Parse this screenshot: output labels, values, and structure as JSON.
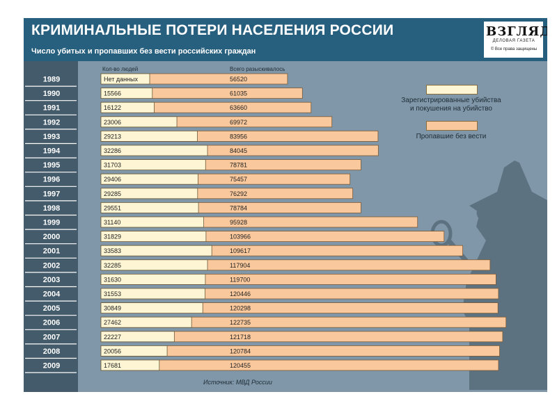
{
  "header": {
    "title": "КРИМИНАЛЬНЫЕ ПОТЕРИ НАСЕЛЕНИЯ РОССИИ",
    "subtitle": "Число убитых и пропавших без вести российских граждан"
  },
  "logo": {
    "word": "ВЗГЛЯД",
    "sub": "ДЕЛОВАЯ ГАЗЕТА",
    "rights": "© Все права защищены"
  },
  "colors": {
    "murders": "#fdf5d3",
    "missing": "#f9c89c",
    "frame": "#7f97a8",
    "header": "#275f7f",
    "sidebar": "#445b6b"
  },
  "chart_data": {
    "type": "bar",
    "orientation": "horizontal",
    "title": "КРИМИНАЛЬНЫЕ ПОТЕРИ НАСЕЛЕНИЯ РОССИИ",
    "subtitle": "Число убитых и пропавших без вести российских граждан",
    "column_headers": [
      "Кол-во людей",
      "Всего разыскивалось"
    ],
    "categories": [
      "1989",
      "1990",
      "1991",
      "1992",
      "1993",
      "1994",
      "1995",
      "1996",
      "1997",
      "1998",
      "1999",
      "2000",
      "2001",
      "2002",
      "2003",
      "2004",
      "2005",
      "2006",
      "2007",
      "2008",
      "2009"
    ],
    "series": [
      {
        "name": "Зарегистрированные убийства и покушения на убийство",
        "labels": [
          "Нет данных",
          "15566",
          "16122",
          "23006",
          "29213",
          "32286",
          "31703",
          "29406",
          "29285",
          "29551",
          "31140",
          "31829",
          "33583",
          "32285",
          "31630",
          "31553",
          "30849",
          "27462",
          "22227",
          "20056",
          "17681"
        ],
        "values": [
          null,
          15566,
          16122,
          23006,
          29213,
          32286,
          31703,
          29406,
          29285,
          29551,
          31140,
          31829,
          33583,
          32285,
          31630,
          31553,
          30849,
          27462,
          22227,
          20056,
          17681
        ]
      },
      {
        "name": "Пропавшие без вести",
        "labels": [
          "56520",
          "61035",
          "63660",
          "69972",
          "83956",
          "84045",
          "78781",
          "75457",
          "76292",
          "78784",
          "95928",
          "103966",
          "109617",
          "117904",
          "119700",
          "120446",
          "120298",
          "122735",
          "121718",
          "120784",
          "120455"
        ],
        "values": [
          56520,
          61035,
          63660,
          69972,
          83956,
          84045,
          78781,
          75457,
          76292,
          78784,
          95928,
          103966,
          109617,
          117904,
          119700,
          120446,
          120298,
          122735,
          121718,
          120784,
          120455
        ]
      }
    ],
    "legend": {
      "murders": [
        "Зарегистрированные убийства",
        "и покушения на убийство"
      ],
      "missing": "Пропавшие без вести"
    },
    "source": "Источник: МВД России"
  }
}
